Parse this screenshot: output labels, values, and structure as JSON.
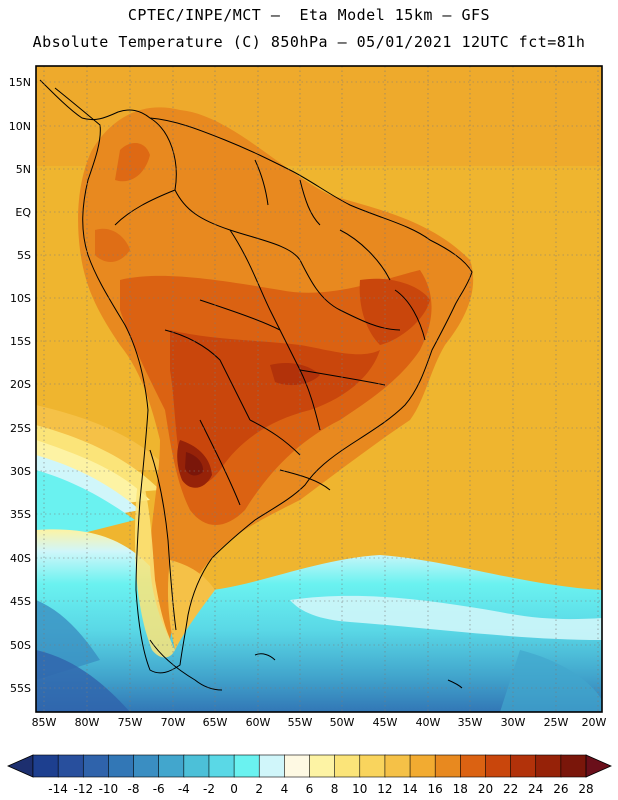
{
  "header": {
    "line1": "CPTEC/INPE/MCT –  Eta Model 15km – GFS",
    "line2": "Absolute Temperature (C) 850hPa – 05/01/2021 12UTC fct=81h"
  },
  "map": {
    "lat_labels": [
      "15N",
      "10N",
      "5N",
      "EQ",
      "5S",
      "10S",
      "15S",
      "20S",
      "25S",
      "30S",
      "35S",
      "40S",
      "45S",
      "50S",
      "55S"
    ],
    "lon_labels": [
      "85W",
      "80W",
      "75W",
      "70W",
      "65W",
      "60W",
      "55W",
      "50W",
      "45W",
      "40W",
      "35W",
      "30W",
      "25W",
      "20W"
    ]
  },
  "colorbar": {
    "ticks": [
      "-14",
      "-12",
      "-10",
      "-8",
      "-6",
      "-4",
      "-2",
      "0",
      "2",
      "4",
      "6",
      "8",
      "10",
      "12",
      "14",
      "16",
      "18",
      "20",
      "22",
      "24",
      "26",
      "28"
    ],
    "colors": [
      "#1d3f8f",
      "#284f9d",
      "#2f63ab",
      "#3277b6",
      "#3a8ec2",
      "#42a6cd",
      "#4cc0d8",
      "#5ad8e6",
      "#6af2f0",
      "#d0f6fa",
      "#fef9e3",
      "#fdf3a4",
      "#fbe479",
      "#f9d45d",
      "#f5c147",
      "#f2ab31",
      "#e8891f",
      "#db6212",
      "#c9460c",
      "#b2320a",
      "#962208",
      "#7a160a"
    ]
  },
  "palette": {
    "ocean_deep": "#e9a92a",
    "ocean_warm": "#efb52f",
    "land_hot": "#cf6a1d",
    "land_very_hot": "#b8420f",
    "cold_band": "#6af2f0"
  }
}
